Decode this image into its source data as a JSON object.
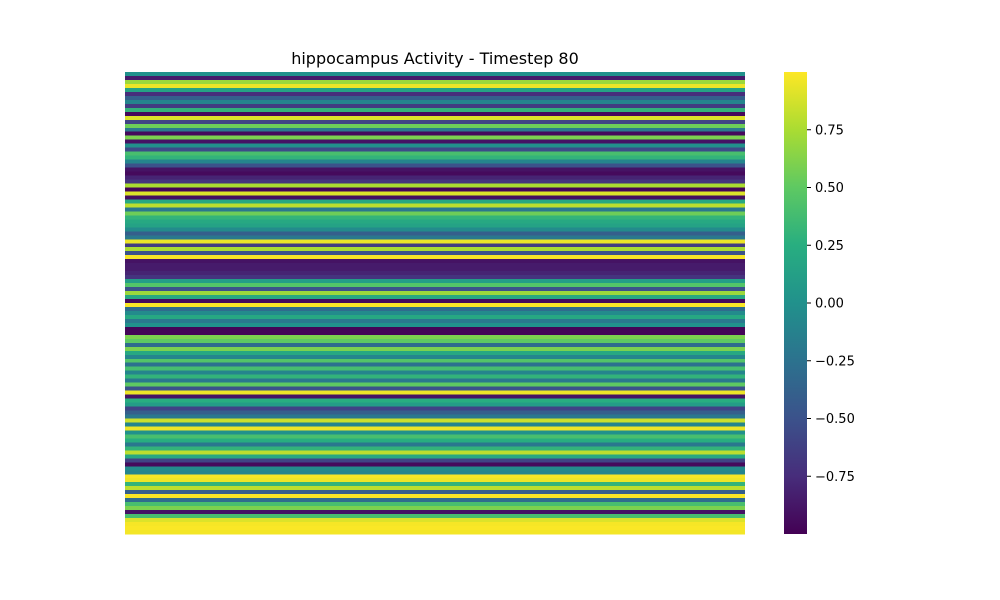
{
  "chart_data": {
    "type": "heatmap",
    "title": "hippocampus Activity - Timestep 80",
    "xlabel": "",
    "ylabel": "",
    "colormap": "viridis",
    "vmin": -1.0,
    "vmax": 1.0,
    "colorbar_ticks": [
      0.75,
      0.5,
      0.25,
      0.0,
      -0.25,
      -0.5,
      -0.75
    ],
    "colorbar_tick_labels": [
      "0.75",
      "0.50",
      "0.25",
      "0.00",
      "−0.25",
      "−0.50",
      "−0.75"
    ],
    "axis_ticks_visible": false,
    "n_columns": 1,
    "row_values": [
      0.0,
      -0.85,
      0.7,
      0.95,
      0.15,
      -0.75,
      -0.4,
      -0.1,
      -0.65,
      0.3,
      -0.95,
      0.9,
      -0.6,
      0.55,
      -0.2,
      -0.95,
      0.6,
      -0.9,
      0.0,
      -0.55,
      0.4,
      0.3,
      -0.1,
      -0.5,
      -0.9,
      -0.95,
      -0.8,
      -0.7,
      0.75,
      -0.98,
      0.9,
      -0.92,
      0.2,
      0.8,
      -0.2,
      0.55,
      0.3,
      0.2,
      0.15,
      -0.05,
      -0.4,
      -0.2,
      0.95,
      -0.65,
      0.75,
      -0.5,
      0.98,
      -0.9,
      -0.85,
      -0.85,
      -0.8,
      -0.7,
      0.1,
      0.45,
      -0.5,
      0.7,
      0.2,
      -0.95,
      0.99,
      -0.3,
      -0.05,
      0.2,
      -0.2,
      0.0,
      -0.98,
      -0.98,
      0.6,
      0.5,
      -0.3,
      0.6,
      0.2,
      -0.1,
      0.45,
      -0.25,
      0.4,
      -0.1,
      0.3,
      -0.2,
      0.5,
      -0.5,
      0.95,
      -0.9,
      0.25,
      0.1,
      -0.6,
      -0.4,
      -0.2,
      0.85,
      -0.1,
      0.95,
      0.0,
      0.4,
      0.25,
      -0.2,
      0.3,
      0.8,
      0.2,
      -0.6,
      -0.95,
      -0.05,
      -0.1,
      0.98,
      0.95,
      0.3,
      0.8,
      -0.4,
      0.99,
      -0.3,
      0.4,
      0.6,
      -0.9,
      0.4,
      0.9,
      0.98,
      0.99,
      0.97
    ]
  }
}
